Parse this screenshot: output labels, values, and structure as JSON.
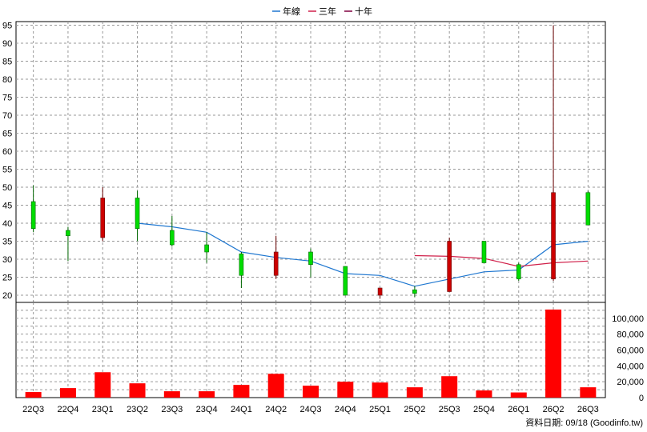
{
  "chart_data": [
    {
      "type": "candlestick",
      "legend_position": "top-center",
      "legend": [
        {
          "label": "年線",
          "color": "#1f77d0"
        },
        {
          "label": "三年",
          "color": "#d0204a"
        },
        {
          "label": "十年",
          "color": "#800040"
        }
      ],
      "categories": [
        "22Q3",
        "22Q4",
        "23Q1",
        "23Q2",
        "23Q3",
        "23Q4",
        "24Q1",
        "24Q2",
        "24Q3",
        "24Q4",
        "25Q1",
        "25Q2",
        "25Q3",
        "25Q4",
        "26Q1",
        "26Q2",
        "26Q3"
      ],
      "ohlc": [
        {
          "o": 38.5,
          "h": 50.5,
          "l": 37.5,
          "c": 46.0
        },
        {
          "o": 36.5,
          "h": 39.0,
          "l": 29.5,
          "c": 38.0
        },
        {
          "o": 47.0,
          "h": 50.0,
          "l": 35.0,
          "c": 36.0
        },
        {
          "o": 38.5,
          "h": 49.0,
          "l": 35.0,
          "c": 47.0
        },
        {
          "o": 34.0,
          "h": 42.0,
          "l": 33.5,
          "c": 38.0
        },
        {
          "o": 32.0,
          "h": 37.5,
          "l": 29.0,
          "c": 34.0
        },
        {
          "o": 25.5,
          "h": 32.0,
          "l": 22.0,
          "c": 31.5
        },
        {
          "o": 32.0,
          "h": 36.5,
          "l": 24.5,
          "c": 25.5
        },
        {
          "o": 28.5,
          "h": 33.0,
          "l": 25.0,
          "c": 32.0
        },
        {
          "o": 20.0,
          "h": 28.0,
          "l": 20.0,
          "c": 28.0
        },
        {
          "o": 22.0,
          "h": 22.0,
          "l": 19.0,
          "c": 20.0
        },
        {
          "o": 20.5,
          "h": 22.5,
          "l": 19.5,
          "c": 21.5
        },
        {
          "o": 35.0,
          "h": 36.0,
          "l": 21.0,
          "c": 21.0
        },
        {
          "o": 29.0,
          "h": 35.0,
          "l": 29.0,
          "c": 35.0
        },
        {
          "o": 24.5,
          "h": 29.0,
          "l": 24.0,
          "c": 28.5
        },
        {
          "o": 48.5,
          "h": 95.0,
          "l": 24.0,
          "c": 24.5
        },
        {
          "o": 39.5,
          "h": 49.0,
          "l": 39.5,
          "c": 48.5
        }
      ],
      "year_line": [
        null,
        null,
        null,
        40.0,
        39.0,
        37.5,
        32.0,
        30.5,
        29.5,
        26.0,
        25.5,
        22.5,
        24.5,
        26.5,
        27.0,
        34.0,
        35.0
      ],
      "three_year_line": [
        null,
        null,
        null,
        null,
        null,
        null,
        null,
        null,
        null,
        null,
        null,
        31.0,
        30.8,
        30.2,
        28.0,
        29.0,
        29.5
      ],
      "ylim": [
        18,
        96
      ],
      "yticks": [
        20,
        25,
        30,
        35,
        40,
        45,
        50,
        55,
        60,
        65,
        70,
        75,
        80,
        85,
        90,
        95
      ],
      "grid": true
    },
    {
      "type": "bar",
      "categories": [
        "22Q3",
        "22Q4",
        "23Q1",
        "23Q2",
        "23Q3",
        "23Q4",
        "24Q1",
        "24Q2",
        "24Q3",
        "24Q4",
        "25Q1",
        "25Q2",
        "25Q3",
        "25Q4",
        "26Q1",
        "26Q2",
        "26Q3"
      ],
      "values": [
        7000,
        12000,
        32000,
        18000,
        8000,
        8000,
        16000,
        30000,
        15000,
        20000,
        19000,
        13000,
        27000,
        9000,
        6500,
        111000,
        13000
      ],
      "bar_color": "#ff0000",
      "ylim": [
        0,
        120000
      ],
      "ytick_labels": [
        "0",
        "20,000",
        "40,000",
        "60,000",
        "80,000",
        "100,000"
      ],
      "yticks": [
        0,
        20000,
        40000,
        60000,
        80000,
        100000
      ],
      "grid": true
    }
  ],
  "footer": {
    "note": "資料日期: 09/18 (Goodinfo.tw)"
  }
}
